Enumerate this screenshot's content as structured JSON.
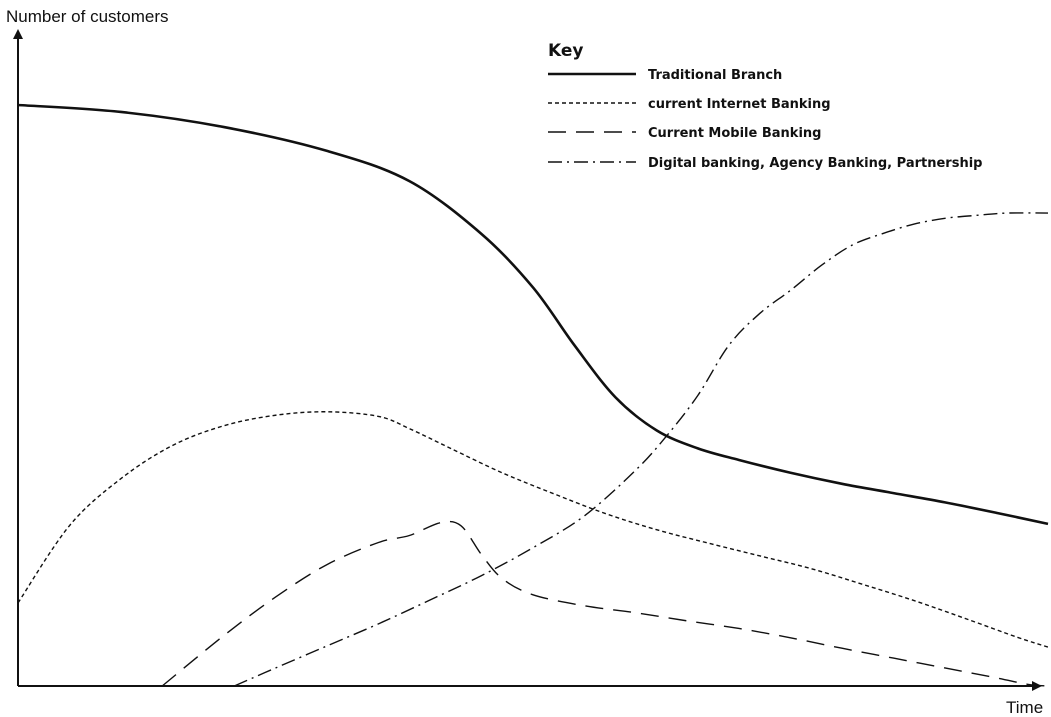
{
  "chart_data": {
    "type": "line",
    "title": "",
    "xlabel": "Time",
    "ylabel": "Number of customers",
    "xlim": [
      0,
      100
    ],
    "ylim": [
      0,
      100
    ],
    "grid": false,
    "axis_tick_labels": false,
    "legend": {
      "title": "Key",
      "placement": "top-right"
    },
    "series": [
      {
        "name": "Traditional Branch",
        "line_style": "solid-thick",
        "x": [
          0,
          10,
          20,
          30,
          38,
          45,
          50,
          54,
          58,
          62,
          66,
          70,
          75,
          80,
          85,
          90,
          95,
          100
        ],
        "y": [
          100,
          98.8,
          96.2,
          92.1,
          86.9,
          77.8,
          68.6,
          58.7,
          49.7,
          44.0,
          40.9,
          38.9,
          36.7,
          34.8,
          33.2,
          31.6,
          29.8,
          27.9
        ]
      },
      {
        "name": "current Internet Banking",
        "line_style": "short-dash",
        "x": [
          0,
          5,
          10,
          15,
          20,
          25,
          30,
          35,
          38,
          42,
          47,
          52,
          57,
          62,
          67,
          72,
          77,
          82,
          87,
          92,
          97,
          100
        ],
        "y": [
          14.3,
          27.6,
          35.7,
          41.4,
          44.8,
          46.6,
          47.2,
          46.4,
          44.3,
          40.9,
          36.7,
          33.1,
          29.7,
          26.9,
          24.6,
          22.4,
          20.2,
          17.5,
          14.7,
          11.6,
          8.4,
          6.7
        ]
      },
      {
        "name": "Current Mobile Banking",
        "line_style": "long-dash",
        "x": [
          14,
          20,
          25,
          30,
          35,
          38,
          41,
          43,
          45,
          47,
          50,
          55,
          60,
          65,
          70,
          75,
          80,
          85,
          90,
          95,
          98,
          100
        ],
        "y": [
          0,
          8.7,
          15.3,
          20.9,
          24.7,
          25.9,
          28.1,
          27.6,
          22.6,
          18.5,
          15.7,
          13.8,
          12.6,
          11.2,
          9.9,
          8.3,
          6.5,
          4.8,
          3.1,
          1.4,
          0.3,
          0
        ]
      },
      {
        "name": "Digital banking, Agency Banking, Partnership",
        "line_style": "dash-dot",
        "x": [
          21,
          25,
          30,
          35,
          40,
          45,
          50,
          55,
          60,
          63,
          66,
          69,
          72,
          75,
          78,
          81,
          84,
          87,
          90,
          93,
          96,
          100
        ],
        "y": [
          0,
          3.1,
          6.9,
          10.7,
          14.8,
          19.0,
          23.8,
          29.3,
          37.2,
          43.1,
          50.0,
          58.6,
          64.1,
          68.1,
          72.4,
          75.9,
          77.9,
          79.5,
          80.5,
          81.0,
          81.4,
          81.4
        ]
      }
    ]
  }
}
